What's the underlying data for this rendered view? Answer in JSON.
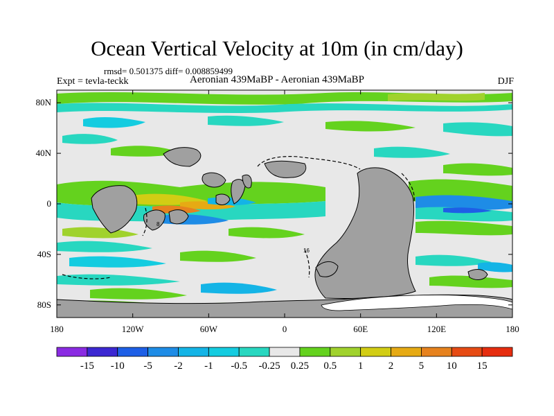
{
  "chart_data": {
    "type": "heatmap",
    "title": "Ocean Vertical Velocity at 10m (in cm/day)",
    "stats_line": "rmsd= 0.501375 diff= 0.008859499",
    "left_label": "Expt = tevla-teckk",
    "center_label": "Aeronian 439MaBP - Aeronian 439MaBP",
    "right_label": "DJF",
    "x_axis": {
      "range": [
        -180,
        180
      ],
      "tick_values": [
        -180,
        -120,
        -60,
        0,
        60,
        120,
        180
      ],
      "tick_labels": [
        "180",
        "120W",
        "60W",
        "0",
        "60E",
        "120E",
        "180"
      ]
    },
    "y_axis": {
      "range": [
        -90,
        90
      ],
      "tick_values": [
        80,
        40,
        0,
        -40,
        -80
      ],
      "tick_labels": [
        "80N",
        "40N",
        "0",
        "40S",
        "80S"
      ]
    },
    "colorbar": {
      "boundaries": [
        "-15",
        "-10",
        "-5",
        "-2",
        "-1",
        "-0.5",
        "-0.25",
        "0.25",
        "0.5",
        "1",
        "2",
        "5",
        "10",
        "15"
      ],
      "colors": [
        "#8a2be2",
        "#3c28d2",
        "#1e5fe6",
        "#1e8ce6",
        "#14b4e6",
        "#14cce0",
        "#28d7c0",
        "#e8e8e8",
        "#64d21e",
        "#a0d22d",
        "#d2cd14",
        "#e6aa14",
        "#e6821e",
        "#e64b14",
        "#e62d0f"
      ]
    },
    "land_color": "#a0a0a0",
    "ocean_background": "#e8e8e8",
    "contour_annotations": [
      "8",
      "16"
    ]
  }
}
